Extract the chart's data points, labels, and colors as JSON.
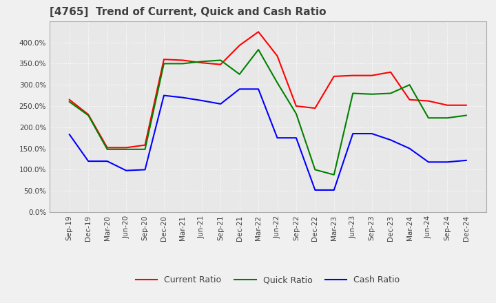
{
  "title": "[4765]  Trend of Current, Quick and Cash Ratio",
  "x_labels": [
    "Sep-19",
    "Dec-19",
    "Mar-20",
    "Jun-20",
    "Sep-20",
    "Dec-20",
    "Mar-21",
    "Jun-21",
    "Sep-21",
    "Dec-21",
    "Mar-22",
    "Jun-22",
    "Sep-22",
    "Dec-22",
    "Mar-23",
    "Jun-23",
    "Sep-23",
    "Dec-23",
    "Mar-24",
    "Jun-24",
    "Sep-24",
    "Dec-24"
  ],
  "current_ratio": [
    265,
    230,
    152,
    152,
    158,
    360,
    358,
    352,
    348,
    393,
    425,
    368,
    250,
    245,
    320,
    322,
    322,
    330,
    265,
    262,
    252,
    252
  ],
  "quick_ratio": [
    260,
    228,
    148,
    148,
    148,
    350,
    350,
    355,
    358,
    325,
    383,
    305,
    232,
    100,
    88,
    280,
    278,
    280,
    300,
    222,
    222,
    228
  ],
  "cash_ratio": [
    183,
    120,
    120,
    98,
    100,
    275,
    270,
    263,
    255,
    290,
    290,
    175,
    175,
    52,
    52,
    185,
    185,
    170,
    150,
    118,
    118,
    122
  ],
  "ylim": [
    0,
    450
  ],
  "yticks": [
    0,
    50,
    100,
    150,
    200,
    250,
    300,
    350,
    400
  ],
  "current_color": "#ff0000",
  "quick_color": "#008000",
  "cash_color": "#0000ff",
  "background_color": "#f0f0f0",
  "plot_bg_color": "#e8e8e8",
  "grid_color": "#ffffff",
  "title_color": "#404040",
  "title_fontsize": 11,
  "tick_fontsize": 7.5,
  "legend_fontsize": 9
}
